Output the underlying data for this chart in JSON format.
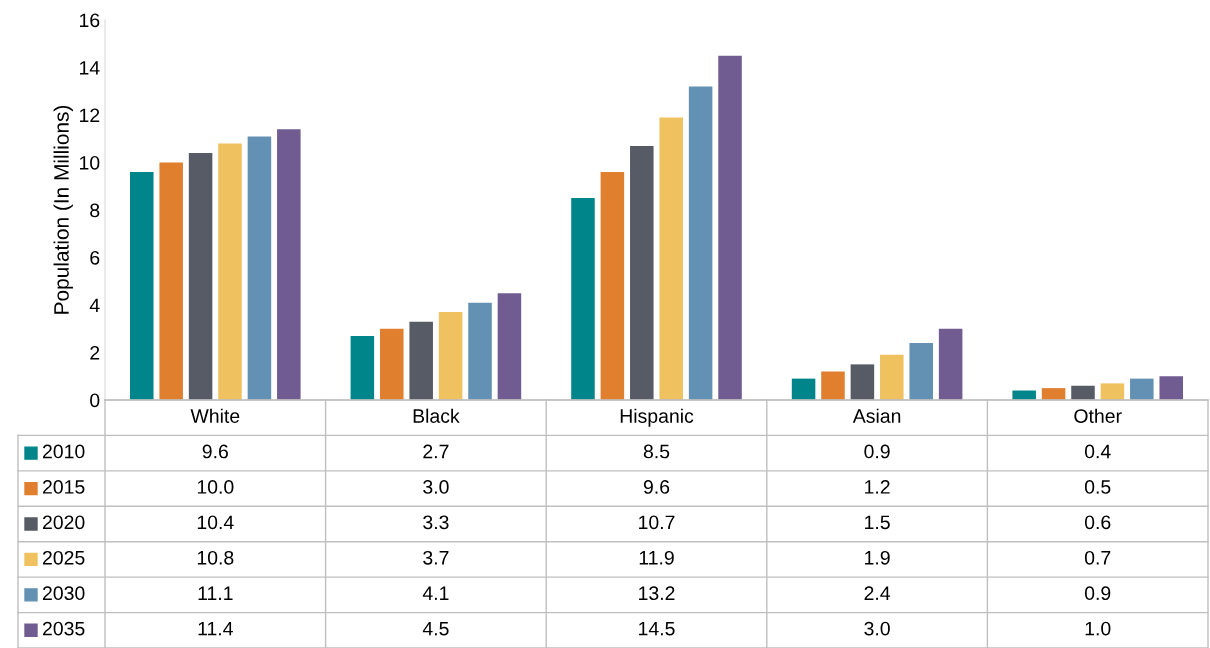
{
  "chart_data": {
    "type": "bar",
    "ylabel": "Population (In Millions)",
    "categories": [
      "White",
      "Black",
      "Hispanic",
      "Asian",
      "Other"
    ],
    "ylim": [
      0,
      16
    ],
    "yticks": [
      0,
      2,
      4,
      6,
      8,
      10,
      12,
      14,
      16
    ],
    "grid": false,
    "legend": "bottom",
    "series": [
      {
        "name": "2010",
        "color": "#00868a",
        "values": [
          9.6,
          2.7,
          8.5,
          0.9,
          0.4
        ],
        "value_labels": [
          "9.6",
          "2.7",
          "8.5",
          "0.9",
          "0.4"
        ]
      },
      {
        "name": "2015",
        "color": "#e07f2e",
        "values": [
          10.0,
          3.0,
          9.6,
          1.2,
          0.5
        ],
        "value_labels": [
          "10.0",
          "3.0",
          "9.6",
          "1.2",
          "0.5"
        ]
      },
      {
        "name": "2020",
        "color": "#575b66",
        "values": [
          10.4,
          3.3,
          10.7,
          1.5,
          0.6
        ],
        "value_labels": [
          "10.4",
          "3.3",
          "10.7",
          "1.5",
          "0.6"
        ]
      },
      {
        "name": "2025",
        "color": "#efc15f",
        "values": [
          10.8,
          3.7,
          11.9,
          1.9,
          0.7
        ],
        "value_labels": [
          "10.8",
          "3.7",
          "11.9",
          "1.9",
          "0.7"
        ]
      },
      {
        "name": "2030",
        "color": "#6391b3",
        "values": [
          11.1,
          4.1,
          13.2,
          2.4,
          0.9
        ],
        "value_labels": [
          "11.1",
          "4.1",
          "13.2",
          "2.4",
          "0.9"
        ]
      },
      {
        "name": "2035",
        "color": "#705c91",
        "values": [
          11.4,
          4.5,
          14.5,
          3.0,
          1.0
        ],
        "value_labels": [
          "11.4",
          "4.5",
          "14.5",
          "3.0",
          "1.0"
        ]
      }
    ]
  }
}
